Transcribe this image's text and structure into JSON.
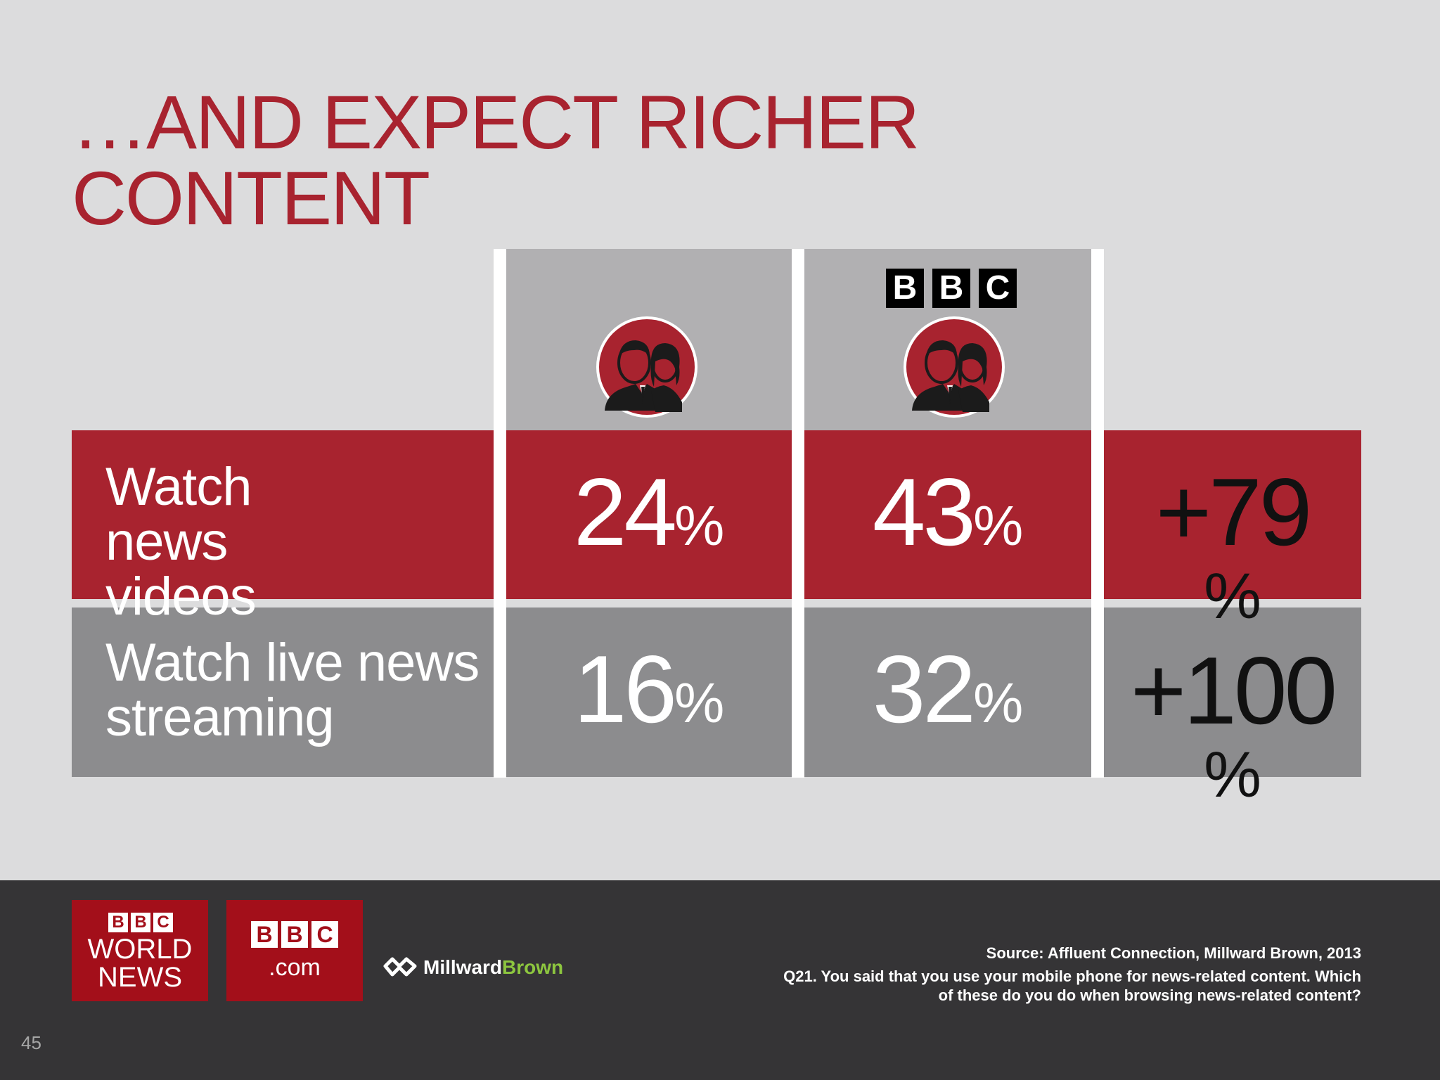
{
  "slide": {
    "title_lines": [
      "…AND EXPECT RICHER",
      "CONTENT"
    ],
    "page_number": "45"
  },
  "header": {
    "bbc_logo": [
      "B",
      "B",
      "C"
    ],
    "avatar_icon": "people-icon"
  },
  "table": {
    "rows": [
      {
        "label_lines": [
          "Watch",
          "news",
          "videos"
        ],
        "col1": "24",
        "col2": "43",
        "change": "+79"
      },
      {
        "label_lines": [
          "Watch live news",
          "streaming"
        ],
        "col1": "16",
        "col2": "32",
        "change": "+100"
      }
    ],
    "percent_symbol": "%"
  },
  "footer": {
    "logo_world_news": {
      "bbc": [
        "B",
        "B",
        "C"
      ],
      "line1": "WORLD",
      "line2": "NEWS"
    },
    "logo_bbc_com": {
      "bbc": [
        "B",
        "B",
        "C"
      ],
      "suffix": ".com"
    },
    "logo_millward": {
      "part1": "Millward",
      "part2": "Brown"
    },
    "source_line": "Source:  Affluent Connection, Millward Brown, 2013",
    "question_line1": "Q21. You said that you use your mobile phone for news-related content. Which",
    "question_line2": "of these do you do when browsing news-related content?"
  },
  "colors": {
    "background": "#dcdcdd",
    "accent_red": "#a8232f",
    "header_gray": "#b1b0b2",
    "row_gray": "#8c8c8e",
    "footer_dark": "#353436",
    "logo_red": "#a30f1a",
    "millward_green": "#8dc63f"
  }
}
